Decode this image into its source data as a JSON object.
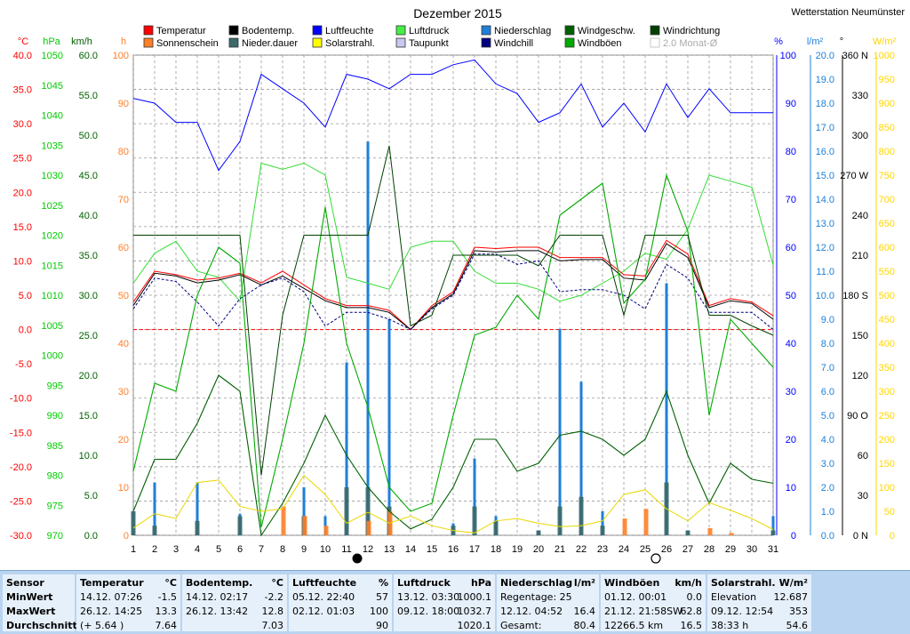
{
  "title": "Dezember 2015",
  "station": "Wetterstation Neumünster",
  "colors": {
    "temperature": "#ff0000",
    "ground_temp": "#000000",
    "humidity": "#0000ff",
    "pressure": "#00dd00",
    "precip": "#1e7fd8",
    "wind_speed": "#006000",
    "wind_dir": "#004000",
    "sunshine": "#ff7f27",
    "precip_duration": "#3b6a6a",
    "solar": "#ffff00",
    "dewpoint": "#c8c8f0",
    "windchill": "#000080",
    "gusts": "#00aa00",
    "zero_line": "#ff0000"
  },
  "legend": [
    {
      "label": "Temperatur",
      "color": "#ff0000",
      "key": "temp"
    },
    {
      "label": "Bodentemp.",
      "color": "#000000",
      "key": "ground"
    },
    {
      "label": "Luftfeuchte",
      "color": "#0000ff",
      "key": "hum"
    },
    {
      "label": "Luftdruck",
      "color": "#44ee44",
      "key": "press"
    },
    {
      "label": "Niederschlag",
      "color": "#1e7fd8",
      "key": "prec"
    },
    {
      "label": "Windgeschw.",
      "color": "#006000",
      "key": "wind"
    },
    {
      "label": "Windrichtung",
      "color": "#004000",
      "key": "dir"
    },
    {
      "label": "Sonnenschein",
      "color": "#ff7f27",
      "key": "sun"
    },
    {
      "label": "Nieder.dauer",
      "color": "#3b6a6a",
      "key": "pdur"
    },
    {
      "label": "Solarstrahl.",
      "color": "#ffff00",
      "key": "solar"
    },
    {
      "label": "Taupunkt",
      "color": "#c8c8f0",
      "key": "dew"
    },
    {
      "label": "Windchill",
      "color": "#000080",
      "key": "chill"
    },
    {
      "label": "Windböen",
      "color": "#00aa00",
      "key": "gust"
    },
    {
      "label": "2.0 Monat-Ø",
      "color": "#ffffff",
      "key": "avg"
    }
  ],
  "chart_data": {
    "type": "line",
    "title": "Dezember 2015",
    "x": [
      1,
      2,
      3,
      4,
      5,
      6,
      7,
      8,
      9,
      10,
      11,
      12,
      13,
      14,
      15,
      16,
      17,
      18,
      19,
      20,
      21,
      22,
      23,
      24,
      25,
      26,
      27,
      28,
      29,
      30,
      31
    ],
    "axes": [
      {
        "unit": "°C",
        "min": -30,
        "max": 40,
        "ticks": [
          "40.0",
          "35.0",
          "30.0",
          "25.0",
          "20.0",
          "15.0",
          "10.0",
          "5.0",
          "0.0",
          "-5.0",
          "-10.0",
          "-15.0",
          "-20.0",
          "-25.0",
          "-30.0"
        ],
        "color": "#ff0000"
      },
      {
        "unit": "hPa",
        "min": 970,
        "max": 1050,
        "ticks": [
          "1050",
          "1045",
          "1040",
          "1035",
          "1030",
          "1025",
          "1020",
          "1015",
          "1010",
          "1005",
          "1000",
          "995",
          "990",
          "985",
          "980",
          "975",
          "970"
        ],
        "color": "#00cc00"
      },
      {
        "unit": "km/h",
        "min": 0,
        "max": 60,
        "ticks": [
          "60.0",
          "55.0",
          "50.0",
          "45.0",
          "40.0",
          "35.0",
          "30.0",
          "25.0",
          "20.0",
          "15.0",
          "10.0",
          "5.0",
          "0.0"
        ],
        "color": "#006000"
      },
      {
        "unit": "h",
        "min": 0,
        "max": 100,
        "ticks": [
          "100",
          "90",
          "80",
          "70",
          "60",
          "50",
          "40",
          "30",
          "20",
          "10",
          "0"
        ],
        "color": "#ff7f27"
      },
      {
        "unit": "%",
        "min": 0,
        "max": 100,
        "ticks": [
          "100",
          "90",
          "80",
          "70",
          "60",
          "50",
          "40",
          "30",
          "20",
          "10",
          "0"
        ],
        "color": "#0000ff"
      },
      {
        "unit": "l/m²",
        "min": 0,
        "max": 20,
        "ticks": [
          "20.0",
          "19.0",
          "18.0",
          "17.0",
          "16.0",
          "15.0",
          "14.0",
          "13.0",
          "12.0",
          "11.0",
          "10.0",
          "9.0",
          "8.0",
          "7.0",
          "6.0",
          "5.0",
          "4.0",
          "3.0",
          "2.0",
          "1.0",
          "0.0"
        ],
        "color": "#1e7fd8"
      },
      {
        "unit": "°",
        "min": 0,
        "max": 360,
        "ticks": [
          "360 N",
          "330",
          "300",
          "270 W",
          "240",
          "210",
          "180 S",
          "150",
          "120",
          "90 O",
          "60",
          "30",
          "0 N"
        ],
        "color": "#000000"
      },
      {
        "unit": "W/m²",
        "min": 0,
        "max": 1000,
        "ticks": [
          "1000",
          "950",
          "900",
          "850",
          "800",
          "750",
          "700",
          "650",
          "600",
          "550",
          "500",
          "450",
          "400",
          "350",
          "300",
          "250",
          "200",
          "150",
          "100",
          "50",
          "0"
        ],
        "color": "#ffd700"
      }
    ],
    "series": [
      {
        "name": "Humidity",
        "axis": "%",
        "values": [
          91,
          90,
          86,
          86,
          76,
          82,
          96,
          93,
          90,
          85,
          96,
          95,
          93,
          96,
          96,
          98,
          99,
          94,
          92,
          86,
          88,
          94,
          85,
          90,
          84,
          94,
          87,
          93,
          88,
          88,
          88
        ]
      },
      {
        "name": "Pressure",
        "axis": "hPa",
        "values": [
          1012,
          1017,
          1019,
          1014,
          1013,
          1009,
          1032,
          1031,
          1032,
          1030,
          1013,
          1012,
          1011,
          1018,
          1019,
          1019,
          1014,
          1012,
          1012,
          1011,
          1009,
          1010,
          1012,
          1014,
          1017,
          1016,
          1021,
          1030,
          1029,
          1028,
          1015
        ]
      },
      {
        "name": "Temperatur",
        "axis": "°C",
        "values": [
          4.0,
          8.5,
          8.0,
          7.2,
          7.5,
          8.2,
          6.8,
          8.5,
          6.5,
          4.5,
          3.5,
          3.5,
          2.8,
          0.0,
          3.5,
          5.5,
          12.0,
          11.8,
          12.0,
          12.0,
          10.5,
          10.5,
          10.5,
          8.0,
          7.8,
          13.0,
          11.0,
          3.5,
          4.5,
          4.0,
          2.0
        ]
      },
      {
        "name": "Bodentemp.",
        "axis": "°C",
        "values": [
          3.5,
          8.2,
          7.8,
          6.8,
          7.2,
          8.0,
          6.5,
          7.8,
          6.0,
          4.2,
          3.2,
          3.2,
          2.5,
          0.0,
          3.2,
          5.2,
          11.5,
          11.3,
          11.5,
          11.5,
          10.0,
          10.2,
          10.2,
          7.5,
          7.2,
          12.5,
          10.5,
          3.2,
          4.2,
          3.8,
          1.5
        ]
      },
      {
        "name": "Taupunkt",
        "axis": "°C",
        "values": [
          3.0,
          7.5,
          7.0,
          4.0,
          0.5,
          4.5,
          6.5,
          7.5,
          5.5,
          0.5,
          2.5,
          2.5,
          1.5,
          0.0,
          3.0,
          5.0,
          11.0,
          11.0,
          9.5,
          10.0,
          5.5,
          5.8,
          5.8,
          5.0,
          3.0,
          9.5,
          7.5,
          2.5,
          2.5,
          2.5,
          0.0
        ]
      },
      {
        "name": "Windgeschw.",
        "axis": "km/h",
        "values": [
          3,
          9.5,
          9.5,
          14,
          20,
          18,
          0,
          4,
          9,
          15,
          10,
          6,
          3,
          0.8,
          2,
          6,
          12,
          12,
          8,
          9,
          12.5,
          13,
          12,
          10,
          12,
          18,
          10,
          4,
          9,
          7,
          6.5
        ]
      },
      {
        "name": "Windböen",
        "axis": "km/h",
        "values": [
          8,
          19,
          18,
          30,
          36,
          34,
          1,
          12,
          24,
          41,
          24,
          16,
          6,
          3,
          4,
          15,
          25,
          26,
          30,
          27,
          40,
          42,
          44,
          29,
          32,
          45,
          38,
          15,
          27,
          24,
          21
        ]
      },
      {
        "name": "Windrichtung",
        "axis": "°",
        "values": [
          225,
          225,
          225,
          225,
          225,
          225,
          45,
          165,
          225,
          225,
          225,
          225,
          292,
          157,
          165,
          210,
          210,
          210,
          210,
          202,
          225,
          225,
          225,
          165,
          225,
          225,
          225,
          165,
          165,
          157,
          150
        ]
      },
      {
        "name": "Solarstrahl.",
        "axis": "W/m²",
        "values": [
          15,
          45,
          35,
          110,
          115,
          60,
          50,
          55,
          125,
          85,
          25,
          48,
          25,
          40,
          20,
          10,
          5,
          30,
          35,
          25,
          18,
          20,
          30,
          85,
          95,
          55,
          30,
          68,
          52,
          35,
          12
        ]
      }
    ],
    "bars": [
      {
        "name": "Niederschlag",
        "axis": "l/m²",
        "values": [
          1.0,
          2.2,
          0.0,
          2.2,
          0.0,
          0.9,
          0.0,
          0.0,
          2.0,
          0.8,
          7.2,
          16.4,
          9.0,
          0.0,
          0.0,
          0.5,
          3.2,
          0.8,
          0.0,
          0.2,
          8.6,
          6.4,
          1.0,
          0.0,
          0.0,
          10.5,
          0.2,
          0.0,
          0.0,
          0.0,
          0.8
        ]
      },
      {
        "name": "Nieder.dauer",
        "axis": "h",
        "values": [
          5,
          2,
          0,
          3,
          0,
          4,
          0,
          0,
          4,
          0,
          10,
          10,
          6,
          0,
          0,
          2,
          6,
          3,
          0,
          1,
          6,
          8,
          2,
          0,
          0,
          11,
          1,
          0,
          0,
          0,
          1
        ]
      },
      {
        "name": "Sonnenschein",
        "axis": "h",
        "values": [
          0,
          0,
          0,
          0,
          0,
          0,
          0,
          6,
          4,
          2,
          0,
          3,
          5,
          0,
          0,
          0,
          0,
          0,
          0,
          0,
          0,
          0,
          0,
          3.5,
          5.5,
          0,
          0,
          1.5,
          0.5,
          0,
          0
        ]
      }
    ]
  },
  "stats": {
    "row_labels": {
      "sensor": "Sensor",
      "min": "MinWert",
      "max": "MaxWert",
      "avg": "Durchschnitt"
    },
    "panels": [
      {
        "title": "Temperatur",
        "unit": "°C",
        "min": {
          "t": "14.12.  07:26",
          "v": "-1.5"
        },
        "max": {
          "t": "26.12.  14:25",
          "v": "13.3"
        },
        "avg": {
          "t": "(+ 5.64 )",
          "v": "7.64"
        }
      },
      {
        "title": "Bodentemp.",
        "unit": "°C",
        "min": {
          "t": "14.12.  02:17",
          "v": "-2.2"
        },
        "max": {
          "t": "26.12.  13:42",
          "v": "12.8"
        },
        "avg": {
          "t": "",
          "v": "7.03"
        }
      },
      {
        "title": "Luftfeuchte",
        "unit": "%",
        "min": {
          "t": "05.12.  22:40",
          "v": "57"
        },
        "max": {
          "t": "02.12.  01:03",
          "v": "100"
        },
        "avg": {
          "t": "",
          "v": "90"
        }
      },
      {
        "title": "Luftdruck",
        "unit": "hPa",
        "min": {
          "t": "13.12.  03:30",
          "v": "1000.1"
        },
        "max": {
          "t": "09.12.  18:00",
          "v": "1032.7"
        },
        "avg": {
          "t": "",
          "v": "1020.1"
        }
      },
      {
        "title": "Niederschlag",
        "unit": "l/m²",
        "min": {
          "t": "Regentage: 25",
          "v": ""
        },
        "max": {
          "t": "12.12.  04:52",
          "v": "16.4"
        },
        "avg": {
          "t": "Gesamt:",
          "v": "80.4"
        }
      },
      {
        "title": "Windböen",
        "unit": "km/h",
        "min": {
          "t": "01.12.  00:01",
          "v": "0.0"
        },
        "max": {
          "t": "21.12.  21:58SW",
          "v": "62.8"
        },
        "avg": {
          "t": "12266.5 km",
          "v": "16.5"
        }
      },
      {
        "title": "Solarstrahl.",
        "unit": "W/m²",
        "min": {
          "t": "Elevation",
          "v": "12.687"
        },
        "max": {
          "t": "09.12.  12:54",
          "v": "353"
        },
        "avg": {
          "t": "38:33 h",
          "v": "54.6"
        }
      }
    ]
  }
}
